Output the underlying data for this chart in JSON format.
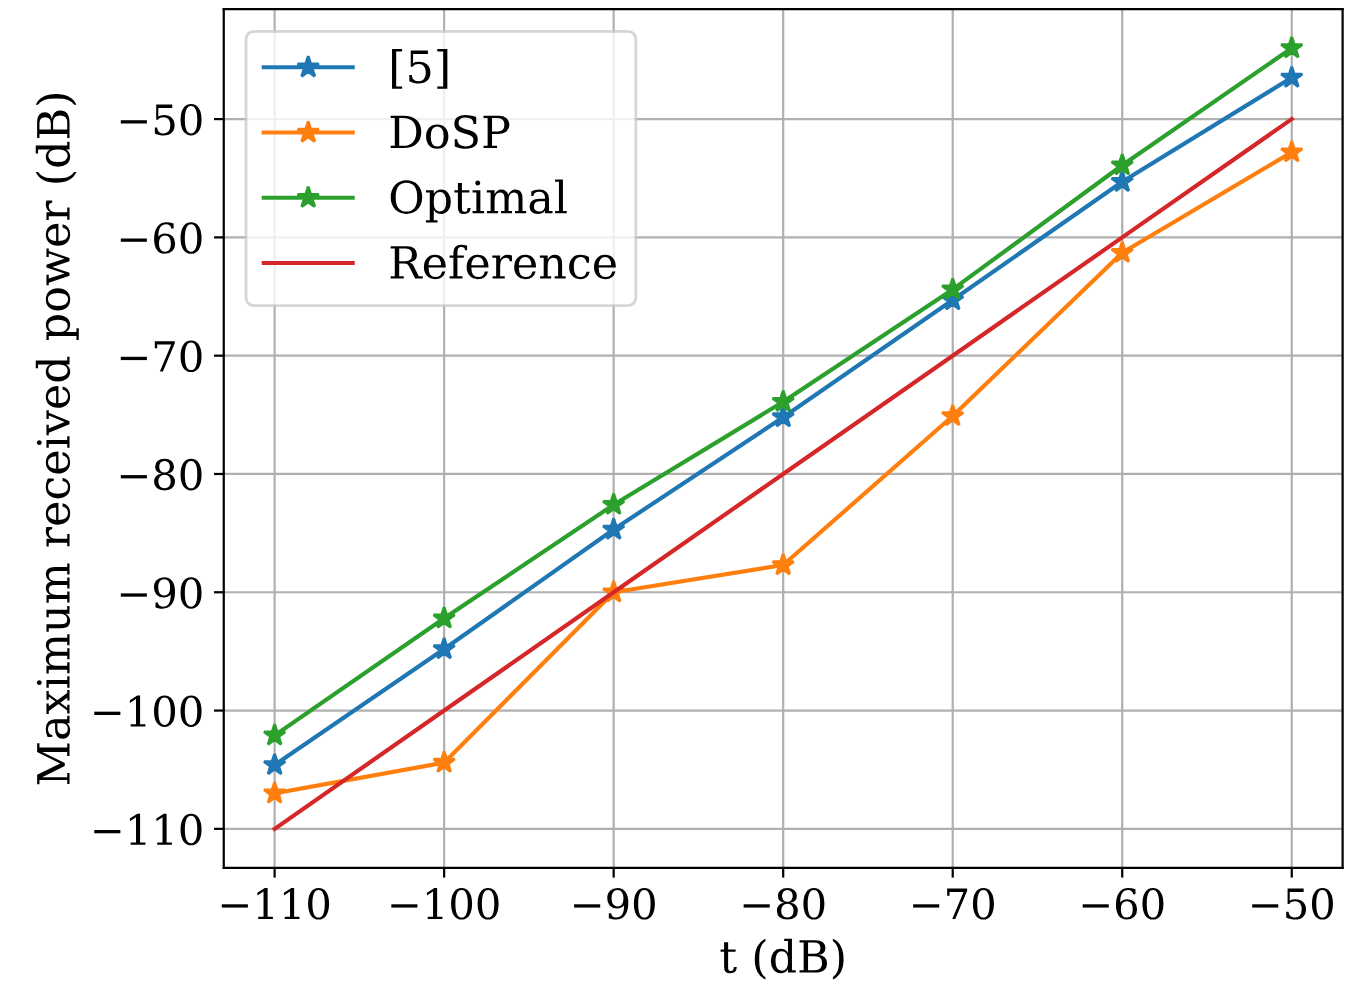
{
  "chart_data": {
    "type": "line",
    "xlabel": "t (dB)",
    "ylabel": "Maximum received power (dB)",
    "x": [
      -110,
      -100,
      -90,
      -80,
      -70,
      -60,
      -50
    ],
    "series": [
      {
        "name": "[5]",
        "color": "#1f77b4",
        "marker": "star",
        "values": [
          -104.6,
          -94.8,
          -84.7,
          -75.2,
          -65.3,
          -55.3,
          -46.5
        ]
      },
      {
        "name": "DoSP",
        "color": "#ff7f0e",
        "marker": "star",
        "values": [
          -107.0,
          -104.4,
          -90.0,
          -87.7,
          -75.1,
          -61.3,
          -52.8
        ]
      },
      {
        "name": "Optimal",
        "color": "#2ca02c",
        "marker": "star",
        "values": [
          -102.1,
          -92.2,
          -82.6,
          -73.9,
          -64.4,
          -53.9,
          -44.0
        ]
      },
      {
        "name": "Reference",
        "color": "#d62728",
        "marker": "none",
        "values": [
          -110,
          -100,
          -90,
          -80,
          -70,
          -60,
          -50
        ]
      }
    ],
    "xlim": [
      -113,
      -47
    ],
    "ylim": [
      -113.3,
      -40.7
    ],
    "xticks": [
      -110,
      -100,
      -90,
      -80,
      -70,
      -60,
      -50
    ],
    "yticks": [
      -110,
      -100,
      -90,
      -80,
      -70,
      -60,
      -50
    ],
    "grid": true,
    "legend": "top left",
    "line_style": "solid"
  }
}
